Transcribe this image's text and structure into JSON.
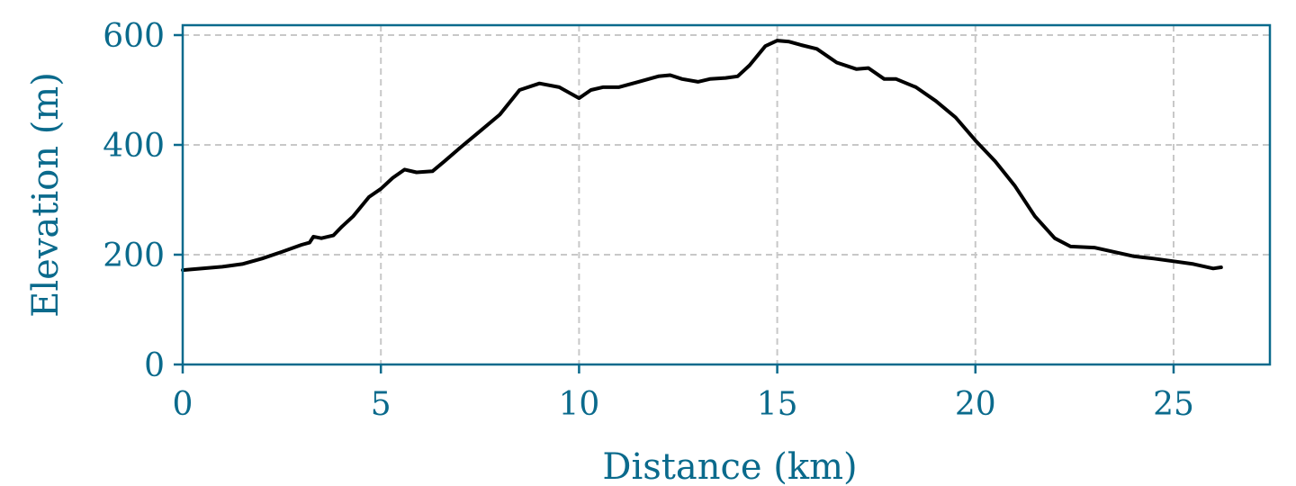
{
  "chart_data": {
    "type": "line",
    "title": "",
    "xlabel": "Distance (km)",
    "ylabel": "Elevation (m)",
    "xlim": [
      0,
      27.4
    ],
    "ylim": [
      0,
      620
    ],
    "xticks": [
      0,
      5,
      10,
      15,
      20,
      25
    ],
    "yticks": [
      0,
      200,
      400,
      600
    ],
    "grid": true,
    "colors": {
      "axis": "#0a6a8c",
      "line": "#000000",
      "grid": "#c8c8c8"
    },
    "series": [
      {
        "x": [
          0,
          0.5,
          1.0,
          1.5,
          2.0,
          2.5,
          3.0,
          3.2,
          3.3,
          3.5,
          3.8,
          4.0,
          4.3,
          4.7,
          5.0,
          5.3,
          5.6,
          5.9,
          6.3,
          6.6,
          7.0,
          7.5,
          8.0,
          8.5,
          9.0,
          9.5,
          10.0,
          10.3,
          10.6,
          11.0,
          11.5,
          12.0,
          12.3,
          12.6,
          13.0,
          13.3,
          13.7,
          14.0,
          14.3,
          14.7,
          15.0,
          15.3,
          15.6,
          16.0,
          16.5,
          17.0,
          17.3,
          17.7,
          18.0,
          18.5,
          19.0,
          19.5,
          20.0,
          20.5,
          21.0,
          21.5,
          22.0,
          22.4,
          23.0,
          23.5,
          24.0,
          24.5,
          25.0,
          25.5,
          26.0,
          26.2
        ],
        "y": [
          172,
          175,
          178,
          183,
          193,
          205,
          218,
          222,
          233,
          230,
          235,
          250,
          270,
          305,
          320,
          340,
          355,
          350,
          352,
          370,
          395,
          425,
          455,
          500,
          512,
          505,
          485,
          500,
          505,
          505,
          515,
          525,
          527,
          520,
          515,
          520,
          522,
          525,
          545,
          580,
          590,
          588,
          582,
          575,
          550,
          538,
          540,
          520,
          520,
          505,
          480,
          450,
          408,
          370,
          325,
          270,
          230,
          215,
          213,
          205,
          197,
          193,
          188,
          183,
          175,
          177
        ]
      }
    ]
  }
}
